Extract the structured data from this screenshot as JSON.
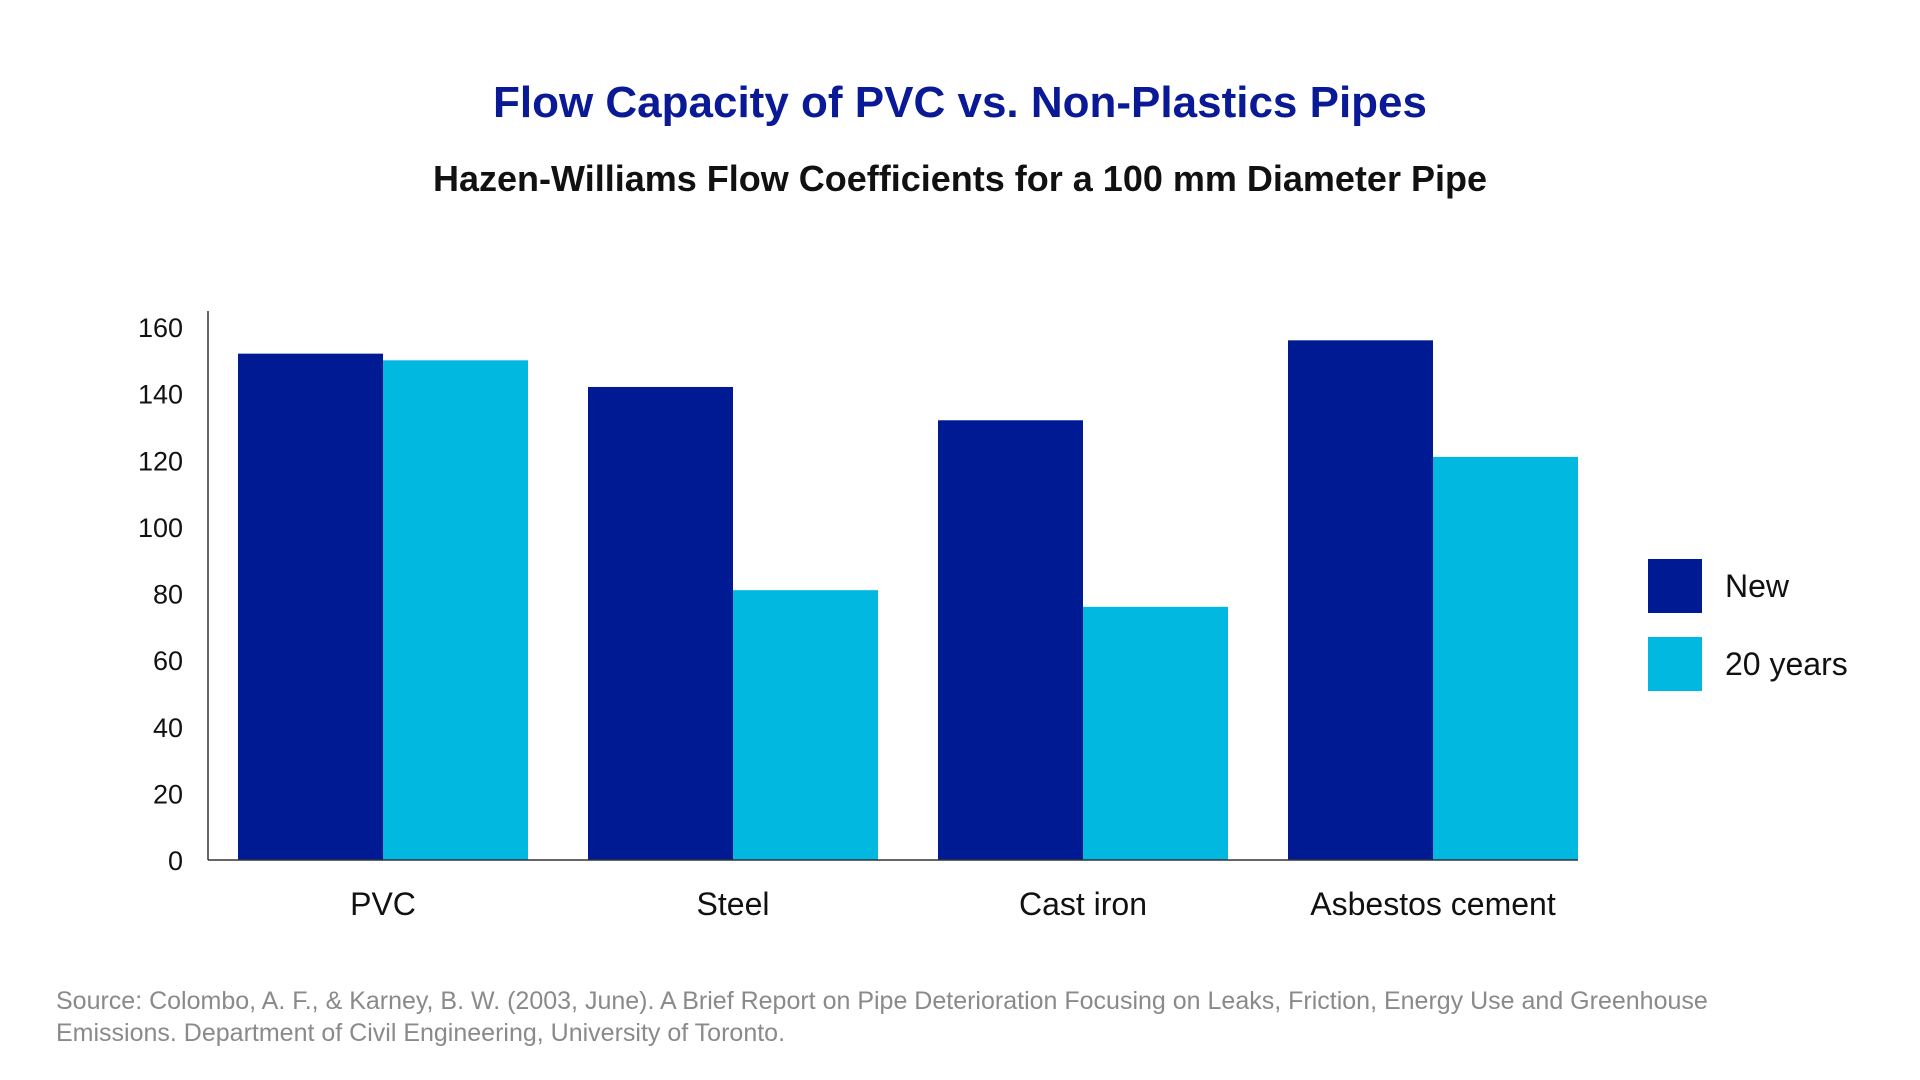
{
  "chart_data": {
    "type": "bar",
    "title": "Flow Capacity of PVC vs. Non-Plastics Pipes",
    "subtitle": "Hazen-Williams Flow Coefficients for a 100 mm Diameter Pipe",
    "xlabel": "",
    "ylabel": "",
    "categories": [
      "PVC",
      "Steel",
      "Cast iron",
      "Asbestos cement"
    ],
    "series": [
      {
        "name": "New",
        "color": "#001a94",
        "values": [
          152,
          142,
          132,
          156
        ]
      },
      {
        "name": "20 years",
        "color": "#00b8e0",
        "values": [
          150,
          81,
          76,
          121
        ]
      }
    ],
    "ylim": [
      0,
      160
    ],
    "yticks": [
      "0",
      "20",
      "40",
      "60",
      "80",
      "100",
      "120",
      "140",
      "160"
    ],
    "grid": false,
    "legend": "right"
  },
  "source": "Source: Colombo, A. F., & Karney, B. W. (2003, June). A Brief Report on Pipe Deterioration Focusing on Leaks, Friction, Energy Use and Greenhouse Emissions. Department of Civil Engineering, University of Toronto."
}
